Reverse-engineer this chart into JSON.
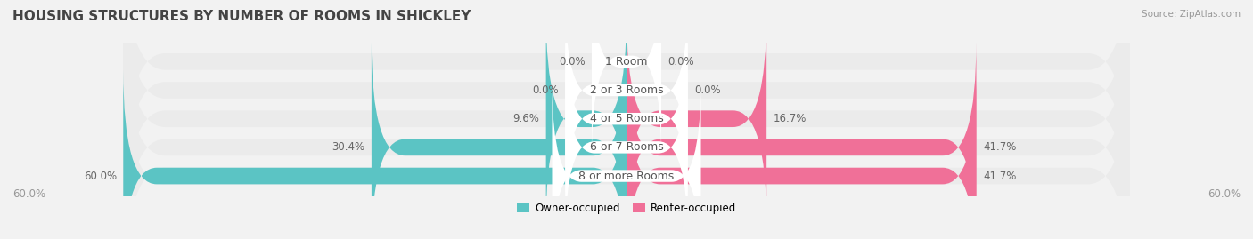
{
  "title": "HOUSING STRUCTURES BY NUMBER OF ROOMS IN SHICKLEY",
  "source": "Source: ZipAtlas.com",
  "categories": [
    "1 Room",
    "2 or 3 Rooms",
    "4 or 5 Rooms",
    "6 or 7 Rooms",
    "8 or more Rooms"
  ],
  "owner_values": [
    0.0,
    0.0,
    9.6,
    30.4,
    60.0
  ],
  "renter_values": [
    0.0,
    0.0,
    16.7,
    41.7,
    41.7
  ],
  "owner_color": "#5BC4C4",
  "renter_color": "#F07098",
  "bg_color": "#F2F2F2",
  "row_bg_color": "#EBEBEB",
  "max_val": 60.0,
  "legend_owner": "Owner-occupied",
  "legend_renter": "Renter-occupied",
  "title_fontsize": 11,
  "label_fontsize": 8.5,
  "cat_fontsize": 9,
  "bar_height": 0.58
}
